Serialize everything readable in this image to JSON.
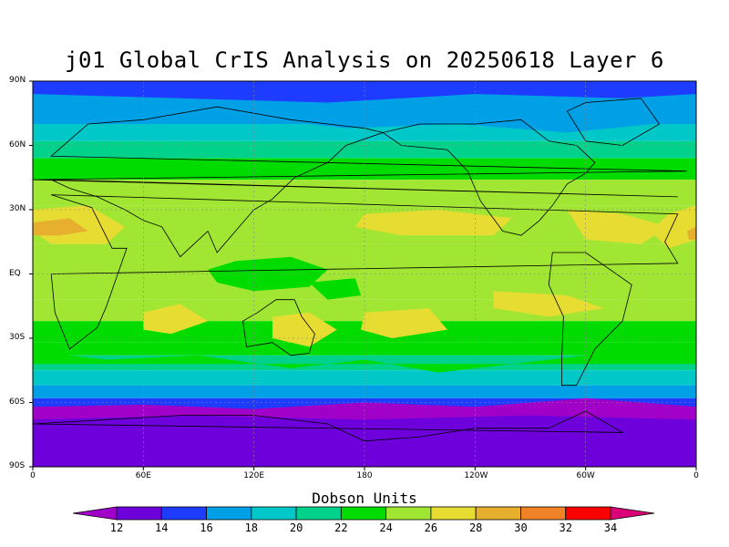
{
  "title": "j01 Global CrIS Analysis on 20250618 Layer 6",
  "units_label": "Dobson Units",
  "lat_labels": [
    "90N",
    "60N",
    "30N",
    "EQ",
    "30S",
    "60S",
    "90S"
  ],
  "lon_labels": [
    "0",
    "60E",
    "120E",
    "180",
    "120W",
    "60W",
    "0"
  ],
  "colorbar": {
    "values": [
      "12",
      "14",
      "16",
      "18",
      "20",
      "22",
      "24",
      "26",
      "28",
      "30",
      "32",
      "34"
    ],
    "colors": [
      "#a000c8",
      "#6e00dc",
      "#1e3cff",
      "#00a0e6",
      "#00c8c8",
      "#00d28c",
      "#00dc00",
      "#a0e632",
      "#e6dc32",
      "#e6af2d",
      "#f08228",
      "#fa0000",
      "#dc0078"
    ]
  },
  "map_fields": {
    "projection": "equirectangular",
    "lon_range": [
      0,
      360
    ],
    "lat_range": [
      -90,
      90
    ],
    "grid": true,
    "coastlines": true
  }
}
